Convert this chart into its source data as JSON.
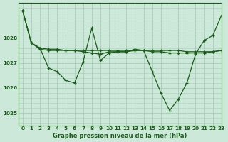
{
  "xlabel": "Graphe pression niveau de la mer (hPa)",
  "bg_color": "#cce8d8",
  "grid_color": "#aaccbb",
  "line_color": "#1a5c1a",
  "xlim": [
    -0.5,
    23
  ],
  "ylim": [
    1024.5,
    1029.4
  ],
  "yticks": [
    1025,
    1026,
    1027,
    1028
  ],
  "xticks": [
    0,
    1,
    2,
    3,
    4,
    5,
    6,
    7,
    8,
    9,
    10,
    11,
    12,
    13,
    14,
    15,
    16,
    17,
    18,
    19,
    20,
    21,
    22,
    23
  ],
  "line1_x": [
    0,
    1,
    2,
    3,
    4,
    5,
    6,
    7,
    8,
    9,
    10,
    11,
    12,
    13,
    14,
    15,
    16,
    17,
    18,
    19,
    20,
    21,
    22,
    23
  ],
  "line1_y": [
    1029.1,
    1027.8,
    1027.6,
    1026.8,
    1026.65,
    1026.3,
    1026.2,
    1027.05,
    1028.4,
    1027.1,
    1027.4,
    1027.45,
    1027.45,
    1027.55,
    1027.5,
    1026.65,
    1025.8,
    1025.1,
    1025.55,
    1026.2,
    1027.35,
    1027.9,
    1028.1,
    1028.9
  ],
  "line2_x": [
    0,
    1,
    2,
    3,
    4,
    5,
    6,
    7,
    8,
    9,
    10,
    11,
    12,
    13,
    14,
    15,
    16,
    17,
    18,
    19,
    20,
    21,
    22,
    23
  ],
  "line2_y": [
    1029.1,
    1027.8,
    1027.6,
    1027.55,
    1027.55,
    1027.5,
    1027.5,
    1027.45,
    1027.4,
    1027.35,
    1027.45,
    1027.45,
    1027.45,
    1027.5,
    1027.5,
    1027.45,
    1027.45,
    1027.4,
    1027.4,
    1027.4,
    1027.4,
    1027.4,
    1027.45,
    1027.5
  ],
  "line3_x": [
    0,
    1,
    2,
    3,
    4,
    5,
    6,
    7,
    8,
    9,
    10,
    11,
    12,
    13,
    14,
    15,
    16,
    17,
    18,
    19,
    20,
    21,
    22,
    23
  ],
  "line3_y": [
    1029.1,
    1027.8,
    1027.55,
    1027.5,
    1027.5,
    1027.5,
    1027.5,
    1027.5,
    1027.5,
    1027.5,
    1027.5,
    1027.5,
    1027.5,
    1027.5,
    1027.5,
    1027.5,
    1027.5,
    1027.5,
    1027.5,
    1027.45,
    1027.45,
    1027.45,
    1027.45,
    1027.5
  ]
}
